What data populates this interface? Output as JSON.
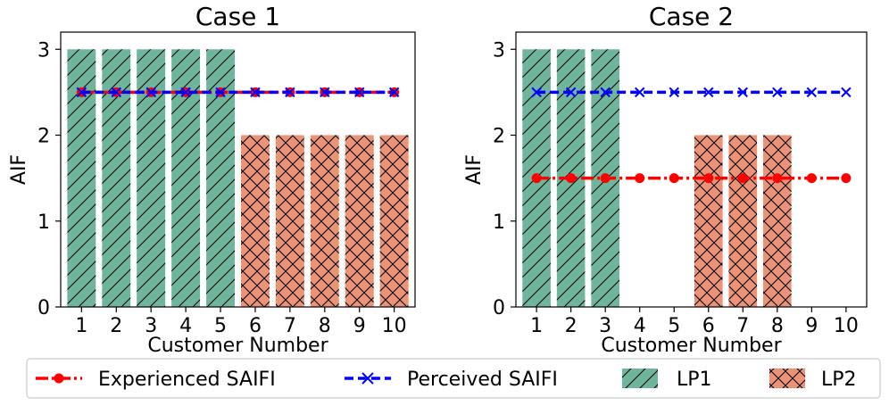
{
  "colors": {
    "lp1": "#6fb59b",
    "lp2": "#ea9376",
    "experienced": "#ff0000",
    "perceived": "#0000ff"
  },
  "legend": {
    "experienced": "Experienced SAIFI",
    "perceived": "Perceived SAIFI",
    "lp1": "LP1",
    "lp2": "LP2"
  },
  "chart_data": [
    {
      "type": "bar",
      "title": "Case 1",
      "xlabel": "Customer Number",
      "ylabel": "AIF",
      "ylim": [
        0,
        3.2
      ],
      "yticks": [
        0,
        1,
        2,
        3
      ],
      "categories": [
        "1",
        "2",
        "3",
        "4",
        "5",
        "6",
        "7",
        "8",
        "9",
        "10"
      ],
      "bars": [
        {
          "customer": 1,
          "value": 3,
          "group": "LP1"
        },
        {
          "customer": 2,
          "value": 3,
          "group": "LP1"
        },
        {
          "customer": 3,
          "value": 3,
          "group": "LP1"
        },
        {
          "customer": 4,
          "value": 3,
          "group": "LP1"
        },
        {
          "customer": 5,
          "value": 3,
          "group": "LP1"
        },
        {
          "customer": 6,
          "value": 2,
          "group": "LP2"
        },
        {
          "customer": 7,
          "value": 2,
          "group": "LP2"
        },
        {
          "customer": 8,
          "value": 2,
          "group": "LP2"
        },
        {
          "customer": 9,
          "value": 2,
          "group": "LP2"
        },
        {
          "customer": 10,
          "value": 2,
          "group": "LP2"
        }
      ],
      "series": [
        {
          "name": "Experienced SAIFI",
          "values": [
            2.5,
            2.5,
            2.5,
            2.5,
            2.5,
            2.5,
            2.5,
            2.5,
            2.5,
            2.5
          ]
        },
        {
          "name": "Perceived SAIFI",
          "values": [
            2.5,
            2.5,
            2.5,
            2.5,
            2.5,
            2.5,
            2.5,
            2.5,
            2.5,
            2.5
          ]
        }
      ]
    },
    {
      "type": "bar",
      "title": "Case 2",
      "xlabel": "Customer Number",
      "ylabel": "AIF",
      "ylim": [
        0,
        3.2
      ],
      "yticks": [
        0,
        1,
        2,
        3
      ],
      "categories": [
        "1",
        "2",
        "3",
        "4",
        "5",
        "6",
        "7",
        "8",
        "9",
        "10"
      ],
      "bars": [
        {
          "customer": 1,
          "value": 3,
          "group": "LP1"
        },
        {
          "customer": 2,
          "value": 3,
          "group": "LP1"
        },
        {
          "customer": 3,
          "value": 3,
          "group": "LP1"
        },
        {
          "customer": 6,
          "value": 2,
          "group": "LP2"
        },
        {
          "customer": 7,
          "value": 2,
          "group": "LP2"
        },
        {
          "customer": 8,
          "value": 2,
          "group": "LP2"
        }
      ],
      "series": [
        {
          "name": "Experienced SAIFI",
          "values": [
            1.5,
            1.5,
            1.5,
            1.5,
            1.5,
            1.5,
            1.5,
            1.5,
            1.5,
            1.5
          ]
        },
        {
          "name": "Perceived SAIFI",
          "values": [
            2.5,
            2.5,
            2.5,
            2.5,
            2.5,
            2.5,
            2.5,
            2.5,
            2.5,
            2.5
          ]
        }
      ]
    }
  ]
}
